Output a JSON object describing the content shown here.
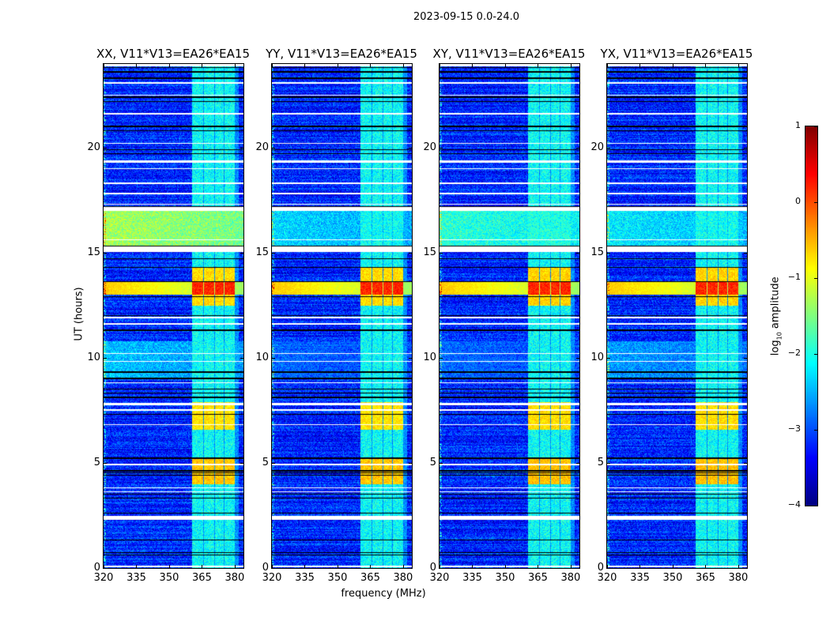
{
  "figure_title": "2023-09-15 0.0-24.0",
  "chart_data": [
    {
      "type": "heatmap",
      "title": "XX, V11*V13=EA26*EA15",
      "polarization": "XX",
      "broadband_rfi_level": {
        "15.3-17.0h": -1.3,
        "9.0-10.8h": -2.4
      },
      "rfi_scale": 1.0
    },
    {
      "type": "heatmap",
      "title": "YY, V11*V13=EA26*EA15",
      "polarization": "YY",
      "broadband_rfi_level": {
        "15.3-17.0h": -2.3,
        "9.0-10.8h": -2.9
      },
      "rfi_scale": 1.0
    },
    {
      "type": "heatmap",
      "title": "XY, V11*V13=EA26*EA15",
      "polarization": "XY",
      "broadband_rfi_level": {
        "15.3-17.0h": -1.9,
        "9.0-10.8h": -2.9
      },
      "rfi_scale": 0.95
    },
    {
      "type": "heatmap",
      "title": "YX, V11*V13=EA26*EA15",
      "polarization": "YX",
      "broadband_rfi_level": {
        "15.3-17.0h": -2.2,
        "9.0-10.8h": -2.6
      },
      "rfi_scale": 0.95
    }
  ],
  "shared_axes": {
    "xlabel": "frequency (MHz)",
    "ylabel": "UT (hours)",
    "xlim": [
      320,
      384
    ],
    "ylim": [
      0,
      24
    ],
    "xticks": [
      "320",
      "335",
      "350",
      "365",
      "380"
    ],
    "xtick_values": [
      320,
      335,
      350,
      365,
      380
    ],
    "yticks": [
      "0",
      "5",
      "10",
      "15",
      "20"
    ],
    "ytick_values": [
      0,
      5,
      10,
      15,
      20
    ]
  },
  "heatmap_model": {
    "background_level": -3.2,
    "noise": 0.45,
    "bright_channels_mhz": [
      [
        360.5,
        365.5
      ],
      [
        366,
        370.5
      ],
      [
        371,
        375
      ],
      [
        375.5,
        380
      ]
    ],
    "bright_channel_baseline": -2.1,
    "bright_channel_events": [
      {
        "hours": [
          4.0,
          5.2
        ],
        "level": -0.6
      },
      {
        "hours": [
          6.6,
          7.9
        ],
        "level": -0.75
      },
      {
        "hours": [
          12.5,
          14.3
        ],
        "level": -0.7
      },
      {
        "hours": [
          13.0,
          13.6
        ],
        "level": 0.2
      }
    ],
    "broadband_events": [
      {
        "hours": [
          13.0,
          13.6
        ],
        "mhz": [
          320,
          384
        ],
        "level": -0.6
      }
    ],
    "flagged_hours": [
      [
        0.05,
        0.1
      ],
      [
        2.3,
        2.5
      ],
      [
        3.6,
        3.65
      ],
      [
        3.8,
        3.85
      ],
      [
        4.9,
        4.95
      ],
      [
        6.8,
        6.85
      ],
      [
        7.5,
        7.55
      ],
      [
        7.75,
        7.85
      ],
      [
        8.8,
        8.85
      ],
      [
        9.8,
        9.85
      ],
      [
        10.2,
        10.25
      ],
      [
        11.6,
        11.65
      ],
      [
        11.9,
        11.95
      ],
      [
        15.05,
        15.3
      ],
      [
        15.6,
        15.65
      ],
      [
        17.0,
        17.2
      ],
      [
        17.3,
        17.35
      ],
      [
        17.8,
        17.85
      ],
      [
        18.3,
        18.35
      ],
      [
        19.0,
        19.05
      ],
      [
        19.3,
        19.4
      ],
      [
        20.2,
        20.25
      ],
      [
        21.6,
        21.65
      ],
      [
        22.5,
        22.55
      ],
      [
        23.05,
        23.15
      ],
      [
        23.9,
        24.0
      ]
    ],
    "gap_hours": [
      [
        0.6,
        0.65
      ],
      [
        0.7,
        0.75
      ],
      [
        1.3,
        1.35
      ],
      [
        2.6,
        2.65
      ],
      [
        3.3,
        3.35
      ],
      [
        3.5,
        3.55
      ],
      [
        4.4,
        4.45
      ],
      [
        4.5,
        4.55
      ],
      [
        4.6,
        4.65
      ],
      [
        5.2,
        5.28
      ],
      [
        7.3,
        7.35
      ],
      [
        8.1,
        8.15
      ],
      [
        8.3,
        8.35
      ],
      [
        8.5,
        8.55
      ],
      [
        9.0,
        9.05
      ],
      [
        9.3,
        9.35
      ],
      [
        11.3,
        11.35
      ],
      [
        12.0,
        12.05
      ],
      [
        12.9,
        12.95
      ],
      [
        13.6,
        13.65
      ],
      [
        14.3,
        14.35
      ],
      [
        14.7,
        14.75
      ],
      [
        15.3,
        15.33
      ],
      [
        17.2,
        17.23
      ],
      [
        19.7,
        19.75
      ],
      [
        19.9,
        19.95
      ],
      [
        20.8,
        20.85
      ],
      [
        21.0,
        21.05
      ],
      [
        22.2,
        22.25
      ],
      [
        22.4,
        22.45
      ],
      [
        23.3,
        23.35
      ],
      [
        23.6,
        23.65
      ],
      [
        23.8,
        23.85
      ]
    ]
  },
  "colorbar": {
    "label_main": "log",
    "label_sub": "10",
    "label_rest": " amplitude",
    "colormap": "jet",
    "range": [
      -4,
      1
    ],
    "ticks": [
      "1",
      "0",
      "−1",
      "−2",
      "−3",
      "−4"
    ],
    "tick_values": [
      1,
      0,
      -1,
      -2,
      -3,
      -4
    ]
  }
}
